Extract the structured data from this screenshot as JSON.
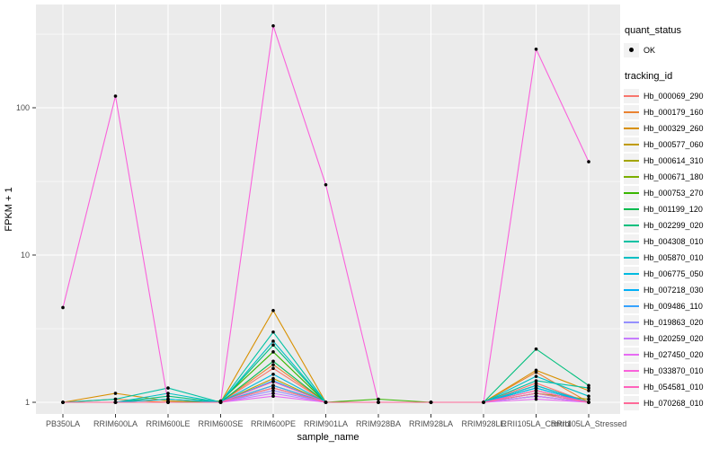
{
  "chart_data": {
    "type": "line",
    "title": "",
    "xlabel": "sample_name",
    "ylabel": "FPKM + 1",
    "y_scale": "log10",
    "y_ticks": [
      1,
      10,
      100
    ],
    "y_minor_ticks": [
      3.16,
      31.6,
      316
    ],
    "ylim": [
      0.83,
      500
    ],
    "grid": "on",
    "legend_position": "right",
    "panel_bg": "#EBEBEB",
    "grid_color": "#FFFFFF",
    "point_color": "#000000",
    "axis_text_color": "#4D4D4D",
    "categories": [
      "PB350LA",
      "RRIM600LA",
      "RRIM600LE",
      "RRIM600SE",
      "RRIM600PE",
      "RRIM901LA",
      "RRIM928BA",
      "RRIM928LA",
      "RRIM928LE",
      "RRII105LA_Control",
      "RRII105LA_Stressed"
    ],
    "series": [
      {
        "name": "Hb_000069_290",
        "color": "#F8766D",
        "values": [
          1,
          1,
          1,
          1,
          1.7,
          1,
          1,
          1,
          1,
          1.35,
          1
        ]
      },
      {
        "name": "Hb_000179_160",
        "color": "#EA8331",
        "values": [
          1,
          1.05,
          1,
          1,
          1.8,
          1,
          1,
          1,
          1,
          1.6,
          1
        ]
      },
      {
        "name": "Hb_000329_260",
        "color": "#D89000",
        "values": [
          1,
          1.15,
          1.02,
          1,
          4.2,
          1,
          1,
          1,
          1,
          1.65,
          1.2
        ]
      },
      {
        "name": "Hb_000577_060",
        "color": "#C09B00",
        "values": [
          1,
          1,
          1,
          1,
          1.45,
          1,
          1,
          1,
          1,
          1.2,
          1
        ]
      },
      {
        "name": "Hb_000614_310",
        "color": "#A3A500",
        "values": [
          1,
          1,
          1,
          1,
          1.3,
          1,
          1,
          1,
          1,
          1.15,
          1.05
        ]
      },
      {
        "name": "Hb_000671_180",
        "color": "#7CAE00",
        "values": [
          1,
          1,
          1,
          1,
          1.25,
          1,
          1,
          1,
          1,
          1.1,
          1
        ]
      },
      {
        "name": "Hb_000753_270",
        "color": "#39B600",
        "values": [
          1,
          1,
          1,
          1.02,
          2.2,
          1,
          1.05,
          1,
          1,
          1.3,
          1
        ]
      },
      {
        "name": "Hb_001199_120",
        "color": "#00BB4E",
        "values": [
          1,
          1,
          1.05,
          1,
          1.9,
          1,
          1,
          1,
          1,
          1.25,
          1
        ]
      },
      {
        "name": "Hb_002299_020",
        "color": "#00BF7D",
        "values": [
          1,
          1,
          1.1,
          1,
          2.45,
          1,
          1,
          1,
          1,
          2.3,
          1.3
        ]
      },
      {
        "name": "Hb_004308_010",
        "color": "#00C1A3",
        "values": [
          1,
          1.05,
          1.25,
          1,
          3.0,
          1,
          1,
          1,
          1,
          1.4,
          1.25
        ]
      },
      {
        "name": "Hb_005870_010",
        "color": "#00BFC4",
        "values": [
          1,
          1,
          1.15,
          1,
          2.6,
          1,
          1,
          1,
          1,
          1.5,
          1.1
        ]
      },
      {
        "name": "Hb_006775_050",
        "color": "#00BAE0",
        "values": [
          1,
          1,
          1.05,
          1,
          1.55,
          1,
          1,
          1,
          1,
          1.3,
          1
        ]
      },
      {
        "name": "Hb_007218_030",
        "color": "#00B0F6",
        "values": [
          1,
          1,
          1,
          1,
          1.4,
          1,
          1,
          1,
          1,
          1.25,
          1
        ]
      },
      {
        "name": "Hb_009486_110",
        "color": "#35A2FF",
        "values": [
          1,
          1,
          1,
          1,
          1.3,
          1,
          1,
          1,
          1,
          1.15,
          1
        ]
      },
      {
        "name": "Hb_019863_020",
        "color": "#9590FF",
        "values": [
          1,
          1,
          1,
          1,
          1.2,
          1,
          1,
          1,
          1,
          1.1,
          1
        ]
      },
      {
        "name": "Hb_020259_020",
        "color": "#C77CFF",
        "values": [
          1,
          1,
          1,
          1,
          1.15,
          1,
          1,
          1,
          1,
          1.1,
          1
        ]
      },
      {
        "name": "Hb_027450_020",
        "color": "#E76BF3",
        "values": [
          1,
          1,
          1,
          1,
          1.1,
          1,
          1,
          1,
          1,
          1.05,
          1
        ]
      },
      {
        "name": "Hb_033870_010",
        "color": "#FA62DB",
        "values": [
          4.4,
          120,
          1,
          1,
          360,
          30,
          1,
          1,
          1,
          250,
          43
        ]
      },
      {
        "name": "Hb_054581_010",
        "color": "#FF62BC",
        "values": [
          1,
          1,
          1,
          1,
          1.38,
          1,
          1,
          1,
          1,
          1.2,
          1
        ]
      },
      {
        "name": "Hb_070268_010",
        "color": "#FF6A98",
        "values": [
          1,
          1,
          1,
          1,
          1.25,
          1,
          1,
          1,
          1,
          1.15,
          1
        ]
      }
    ]
  },
  "legend": {
    "quant_title": "quant_status",
    "quant_items": [
      {
        "label": "OK"
      }
    ],
    "tracking_title": "tracking_id"
  },
  "axes": {
    "x_title": "sample_name",
    "y_title": "FPKM + 1",
    "y_tick_labels": [
      "1",
      "10",
      "100"
    ]
  }
}
